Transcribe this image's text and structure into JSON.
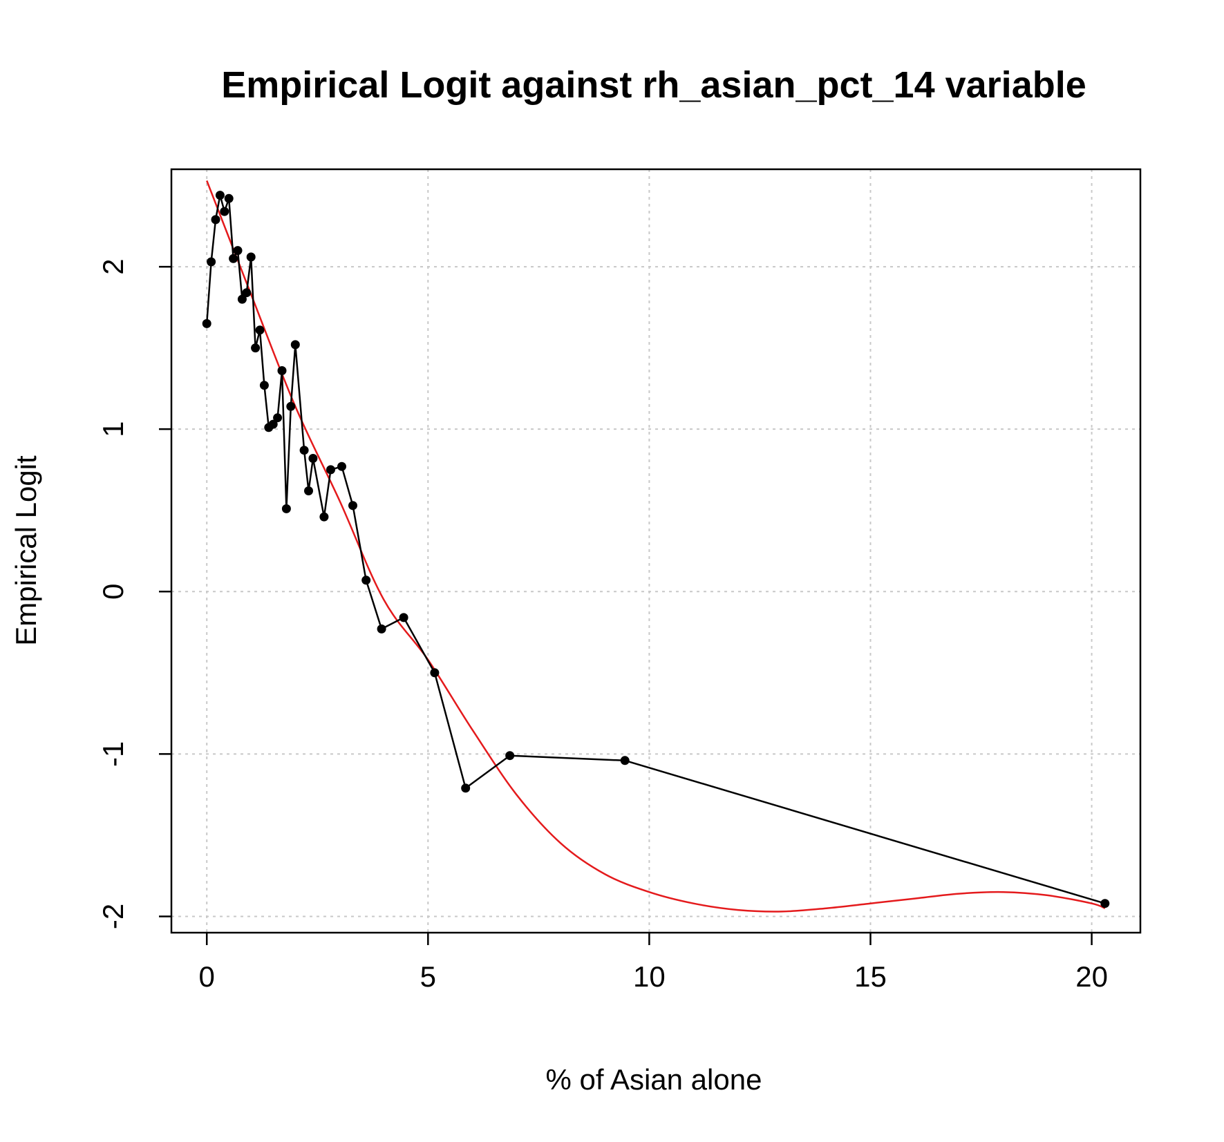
{
  "chart_data": {
    "type": "line",
    "title": "Empirical Logit against rh_asian_pct_14 variable",
    "xlabel": "% of Asian alone",
    "ylabel": "Empirical Logit",
    "xlim": [
      -0.8,
      21.1
    ],
    "ylim": [
      -2.1,
      2.6
    ],
    "xticks": [
      0,
      5,
      10,
      15,
      20
    ],
    "yticks": [
      -2,
      -1,
      0,
      1,
      2
    ],
    "grid": true,
    "series": [
      {
        "kind": "line+points",
        "color": "#000000",
        "x": [
          0.0,
          0.1,
          0.2,
          0.3,
          0.4,
          0.5,
          0.6,
          0.7,
          0.8,
          0.9,
          1.0,
          1.1,
          1.2,
          1.3,
          1.4,
          1.5,
          1.6,
          1.7,
          1.8,
          1.9,
          2.0,
          2.2,
          2.3,
          2.4,
          2.65,
          2.8,
          3.05,
          3.3,
          3.6,
          3.95,
          4.45,
          5.15,
          5.85,
          6.85,
          9.45,
          20.3
        ],
        "y": [
          1.65,
          2.03,
          2.29,
          2.44,
          2.34,
          2.42,
          2.05,
          2.1,
          1.8,
          1.84,
          2.06,
          1.5,
          1.61,
          1.27,
          1.01,
          1.03,
          1.07,
          1.36,
          0.51,
          1.14,
          1.52,
          0.87,
          0.62,
          0.82,
          0.46,
          0.75,
          0.77,
          0.53,
          0.07,
          -0.23,
          -0.16,
          -0.5,
          -1.21,
          -1.01,
          -1.04,
          -1.92
        ]
      },
      {
        "kind": "smooth-curve",
        "color": "#e41a1c",
        "x": [
          0,
          1,
          2,
          3,
          4,
          5,
          6,
          7,
          8,
          9,
          10,
          11,
          12,
          13,
          14,
          15,
          16,
          17,
          18,
          19,
          20,
          20.3
        ],
        "y": [
          2.53,
          1.83,
          1.14,
          0.56,
          -0.05,
          -0.42,
          -0.85,
          -1.25,
          -1.55,
          -1.74,
          -1.85,
          -1.92,
          -1.96,
          -1.97,
          -1.95,
          -1.92,
          -1.89,
          -1.86,
          -1.85,
          -1.87,
          -1.92,
          -1.95
        ]
      }
    ]
  }
}
